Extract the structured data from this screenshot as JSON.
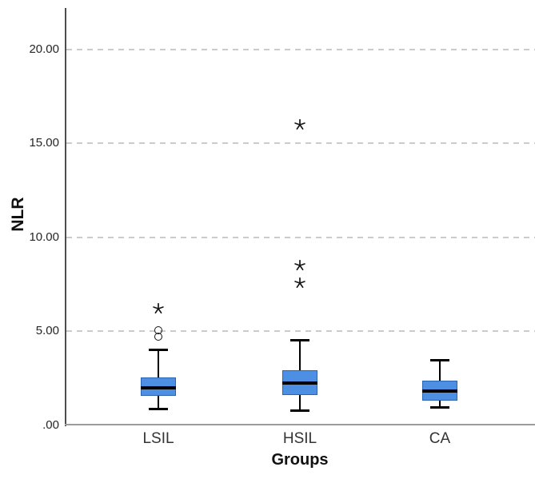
{
  "chart_data": {
    "type": "box",
    "title": "",
    "xlabel": "Groups",
    "ylabel": "NLR",
    "ylim": [
      0,
      22.2
    ],
    "yticks": [
      0,
      5,
      10,
      15,
      20
    ],
    "ytick_labels": [
      ".00",
      "5.00",
      "10.00",
      "15.00",
      "20.00"
    ],
    "grid": "horizontal-dashed",
    "legend": "none",
    "categories": [
      "LSIL",
      "HSIL",
      "CA"
    ],
    "boxes": [
      {
        "group": "LSIL",
        "whisker_low": 0.85,
        "q1": 1.55,
        "median": 2.0,
        "q3": 2.55,
        "whisker_high": 4.0,
        "outlier_circles": [
          4.7,
          5.05
        ],
        "extreme_stars": [
          6.2
        ]
      },
      {
        "group": "HSIL",
        "whisker_low": 0.75,
        "q1": 1.6,
        "median": 2.25,
        "q3": 2.9,
        "whisker_high": 4.5,
        "outlier_circles": [],
        "extreme_stars": [
          7.55,
          8.5,
          16.0
        ]
      },
      {
        "group": "CA",
        "whisker_low": 0.95,
        "q1": 1.3,
        "median": 1.8,
        "q3": 2.35,
        "whisker_high": 3.45,
        "outlier_circles": [],
        "extreme_stars": []
      }
    ],
    "colors": {
      "box_fill": "#4d8fe3",
      "box_border": "#2b63b0",
      "median": "#000000",
      "whisker": "#000000",
      "y_axis": "#4d4d4f",
      "x_axis": "#9c9c9c",
      "gridline": "#cbcbcb",
      "outlier_marker": "#141414"
    }
  }
}
